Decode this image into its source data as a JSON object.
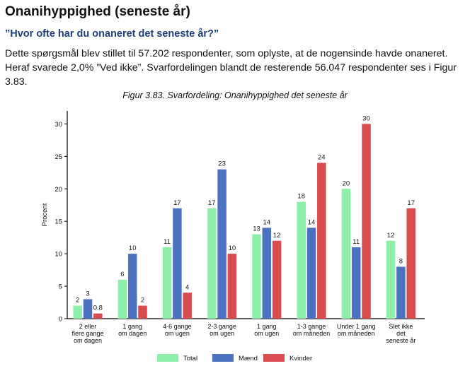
{
  "section_title": "Onanihyppighed (seneste år)",
  "question": "”Hvor ofte har du onaneret det seneste år?”",
  "intro": "Dette spørgsmål blev stillet til 57.202 respondenter, som oplyste, at de nogensinde havde onaneret. Heraf svarede 2,0% ”Ved ikke”. Svarfordelingen blandt de resterende 56.047 respondenter ses i Figur 3.83.",
  "chart_data": {
    "type": "bar",
    "title": "Figur 3.83. Svarfordeling: Onanihyppighed det seneste år",
    "xlabel": "",
    "ylabel": "Procent",
    "ylim": [
      0,
      32
    ],
    "yticks": [
      0,
      5,
      10,
      15,
      20,
      25,
      30
    ],
    "categories": [
      [
        "2 eller",
        "flere gange",
        "om dagen"
      ],
      [
        "1 gang",
        "om dagen"
      ],
      [
        "4-6 gange",
        "om ugen"
      ],
      [
        "2-3 gange",
        "om ugen"
      ],
      [
        "1 gang",
        "om ugen"
      ],
      [
        "1-3 gange",
        "om måneden"
      ],
      [
        "Under 1 gang",
        "om måneden"
      ],
      [
        "Slet ikke",
        "det",
        "seneste år"
      ]
    ],
    "series": [
      {
        "name": "Total",
        "color": "#8ef0a8",
        "values": [
          2,
          6,
          11,
          17,
          13,
          18,
          20,
          12
        ],
        "labels": [
          "2",
          "6",
          "11",
          "17",
          "13",
          "18",
          "20",
          "12"
        ]
      },
      {
        "name": "Mænd",
        "color": "#4a72c0",
        "values": [
          3,
          10,
          17,
          23,
          14,
          14,
          11,
          8
        ],
        "labels": [
          "3",
          "10",
          "17",
          "23",
          "14",
          "14",
          "11",
          "8"
        ]
      },
      {
        "name": "Kvinder",
        "color": "#d94b4f",
        "values": [
          0.8,
          2,
          4,
          10,
          12,
          24,
          30,
          17
        ],
        "labels": [
          "0.8",
          "2",
          "4",
          "10",
          "12",
          "24",
          "30",
          "17"
        ]
      }
    ],
    "legend": "bottom",
    "grid": false
  }
}
